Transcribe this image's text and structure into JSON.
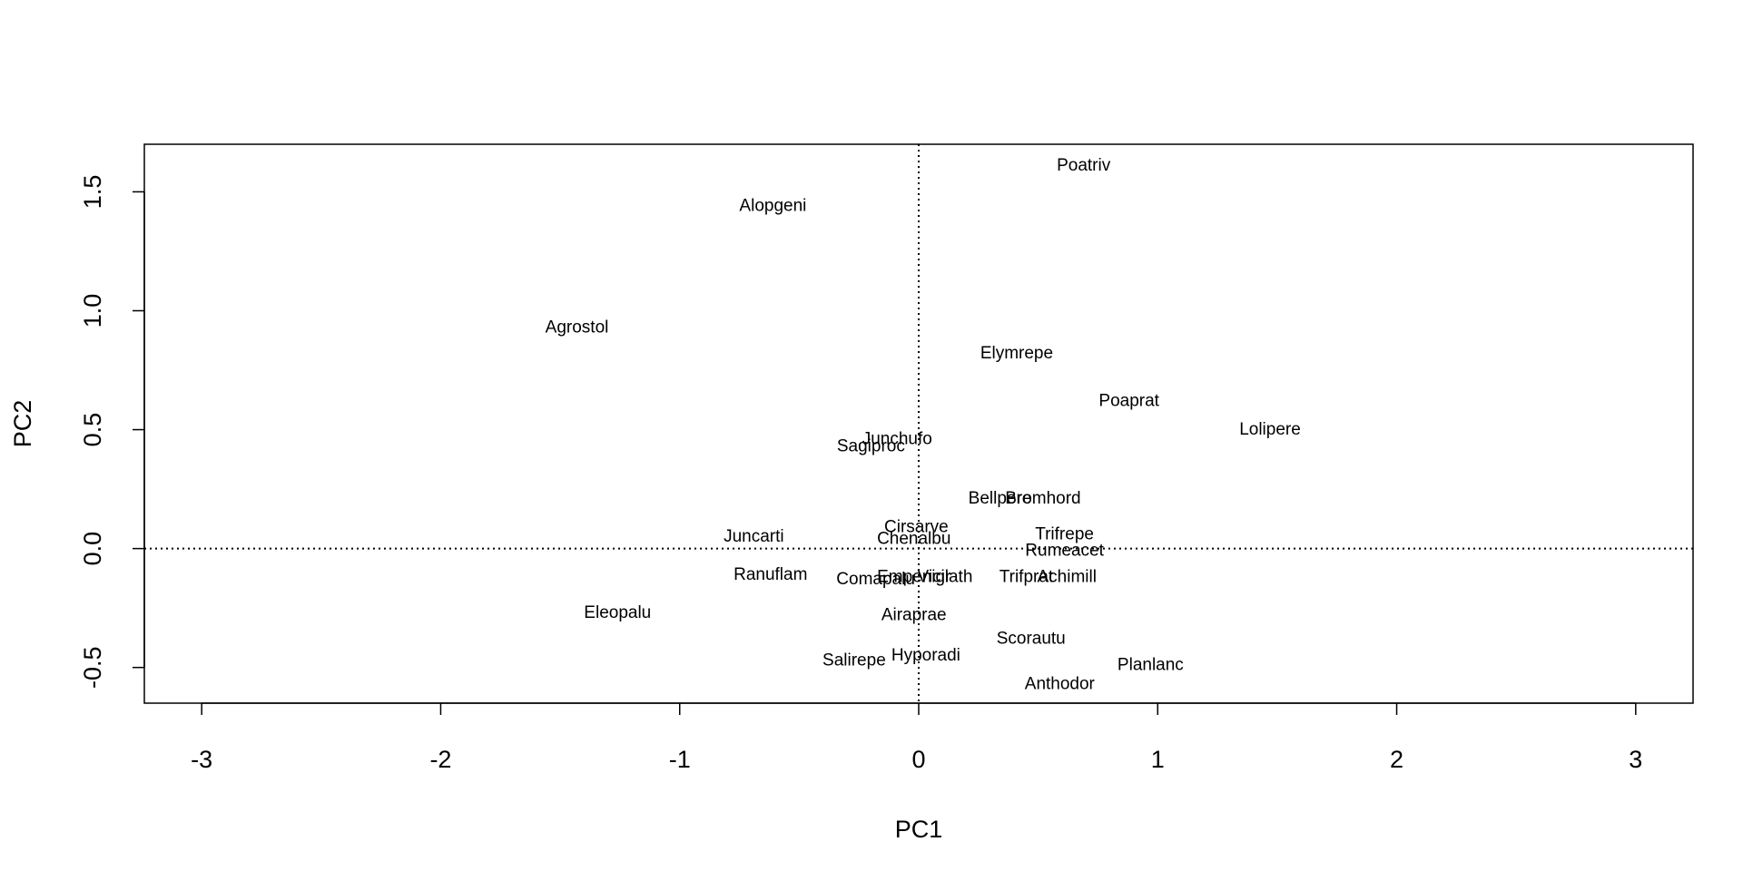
{
  "chart_data": {
    "type": "scatter",
    "xlabel": "PC1",
    "ylabel": "PC2",
    "xlim": [
      -3.24,
      3.24
    ],
    "ylim": [
      -0.65,
      1.7
    ],
    "xticks": [
      -3,
      -2,
      -1,
      0,
      1,
      2,
      3
    ],
    "yticks": [
      -0.5,
      0.0,
      0.5,
      1.0,
      1.5
    ],
    "xtick_labels": [
      "-3",
      "-2",
      "-1",
      "0",
      "1",
      "2",
      "3"
    ],
    "ytick_labels": [
      "-0.5",
      "0.0",
      "0.5",
      "1.0",
      "1.5"
    ],
    "reference_lines": {
      "x": 0,
      "y": 0,
      "style": "dotted"
    },
    "grid": false,
    "points": [
      {
        "label": "Poatriv",
        "x": 0.69,
        "y": 1.61
      },
      {
        "label": "Alopgeni",
        "x": -0.61,
        "y": 1.44
      },
      {
        "label": "Agrostol",
        "x": -1.43,
        "y": 0.93
      },
      {
        "label": "Elymrepe",
        "x": 0.41,
        "y": 0.82
      },
      {
        "label": "Poaprat",
        "x": 0.88,
        "y": 0.62
      },
      {
        "label": "Lolipere",
        "x": 1.47,
        "y": 0.5
      },
      {
        "label": "Junchufo",
        "x": -0.09,
        "y": 0.46
      },
      {
        "label": "Sagiproc",
        "x": -0.2,
        "y": 0.43
      },
      {
        "label": "Bellpere",
        "x": 0.34,
        "y": 0.21
      },
      {
        "label": "Bromhord",
        "x": 0.52,
        "y": 0.21
      },
      {
        "label": "Cirsarve",
        "x": -0.01,
        "y": 0.09
      },
      {
        "label": "Trifrepe",
        "x": 0.61,
        "y": 0.06
      },
      {
        "label": "Juncarti",
        "x": -0.69,
        "y": 0.05
      },
      {
        "label": "Chenalbu",
        "x": -0.02,
        "y": 0.04
      },
      {
        "label": "Rumeacet",
        "x": 0.61,
        "y": -0.01
      },
      {
        "label": "Ranuflam",
        "x": -0.62,
        "y": -0.11
      },
      {
        "label": "Comapalu",
        "x": -0.18,
        "y": -0.13
      },
      {
        "label": "Empenigr",
        "x": -0.02,
        "y": -0.12
      },
      {
        "label": "Vicilath",
        "x": 0.11,
        "y": -0.12
      },
      {
        "label": "Trifprat",
        "x": 0.45,
        "y": -0.12
      },
      {
        "label": "Achimill",
        "x": 0.62,
        "y": -0.12
      },
      {
        "label": "Eleopalu",
        "x": -1.26,
        "y": -0.27
      },
      {
        "label": "Airaprae",
        "x": -0.02,
        "y": -0.28
      },
      {
        "label": "Scorautu",
        "x": 0.47,
        "y": -0.38
      },
      {
        "label": "Salirepe",
        "x": -0.27,
        "y": -0.47
      },
      {
        "label": "Hyporadi",
        "x": 0.03,
        "y": -0.45
      },
      {
        "label": "Planlanc",
        "x": 0.97,
        "y": -0.49
      },
      {
        "label": "Anthodor",
        "x": 0.59,
        "y": -0.57
      }
    ]
  }
}
